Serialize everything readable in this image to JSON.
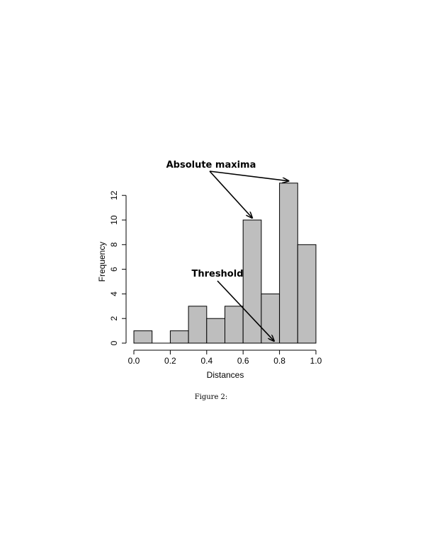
{
  "chart_data": {
    "type": "bar",
    "bins": [
      {
        "from": 0.0,
        "to": 0.1,
        "value": 1
      },
      {
        "from": 0.1,
        "to": 0.2,
        "value": 0
      },
      {
        "from": 0.2,
        "to": 0.3,
        "value": 1
      },
      {
        "from": 0.3,
        "to": 0.4,
        "value": 3
      },
      {
        "from": 0.4,
        "to": 0.5,
        "value": 2
      },
      {
        "from": 0.5,
        "to": 0.6,
        "value": 3
      },
      {
        "from": 0.6,
        "to": 0.7,
        "value": 10
      },
      {
        "from": 0.7,
        "to": 0.8,
        "value": 4
      },
      {
        "from": 0.8,
        "to": 0.9,
        "value": 13
      },
      {
        "from": 0.9,
        "to": 1.0,
        "value": 8
      }
    ],
    "xlabel": "Distances",
    "ylabel": "Frequency",
    "xlim": [
      0,
      1
    ],
    "ylim": [
      0,
      12
    ],
    "xticks": [
      "0.0",
      "0.2",
      "0.4",
      "0.6",
      "0.8",
      "1.0"
    ],
    "yticks": [
      "0",
      "2",
      "4",
      "6",
      "8",
      "10",
      "12"
    ],
    "bar_color": "#bebebe",
    "grid": false,
    "annotations": [
      {
        "text": "Absolute maxima",
        "targets": [
          {
            "x": 0.65,
            "y": 10
          },
          {
            "x": 0.85,
            "y": 13
          }
        ]
      },
      {
        "text": "Threshold",
        "targets": [
          {
            "x": 0.77,
            "y": 0
          }
        ]
      }
    ]
  },
  "caption": "Figure 2:"
}
